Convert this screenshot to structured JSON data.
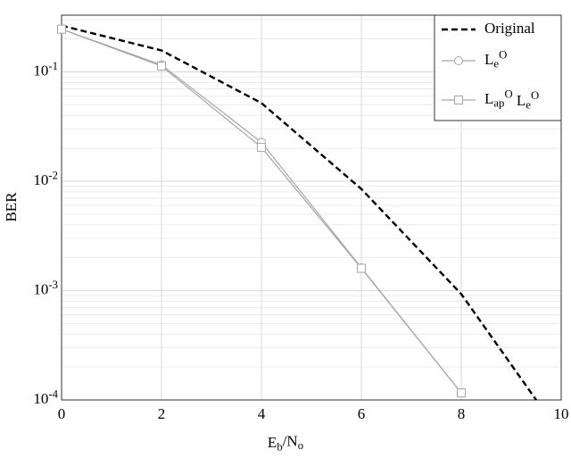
{
  "chart_data": {
    "type": "line",
    "xlabel": "E_b/N_o",
    "ylabel": "BER",
    "series": [
      {
        "name": "Original",
        "color": "#000000",
        "dash": true,
        "marker": "none",
        "x": [
          0,
          2,
          4,
          6,
          8,
          9.5
        ],
        "values": [
          0.265,
          0.157,
          0.0519,
          0.0085,
          0.00093,
          0.0001
        ]
      },
      {
        "name": "L_e^O",
        "color": "#a6a6a6",
        "dash": false,
        "marker": "circle",
        "x": [
          0,
          2,
          4,
          6,
          8
        ],
        "values": [
          0.246,
          0.116,
          0.0227,
          0.00162,
          0.000116
        ]
      },
      {
        "name": "L_ap^O L_e^O",
        "color": "#a6a6a6",
        "dash": false,
        "marker": "square",
        "x": [
          0,
          2,
          4,
          6,
          8
        ],
        "values": [
          0.246,
          0.113,
          0.0204,
          0.0016,
          0.000116
        ]
      }
    ],
    "xlim": [
      0,
      10
    ],
    "xticks": [
      0,
      2,
      4,
      6,
      8,
      10
    ],
    "ylim": [
      0.0001,
      0.33
    ],
    "ylog": true,
    "yticks": [
      {
        "value": 0.0001,
        "label": "10^-4"
      },
      {
        "value": 0.001,
        "label": "10^-3"
      },
      {
        "value": 0.01,
        "label": "10^-2"
      },
      {
        "value": 0.1,
        "label": "10^-1"
      }
    ],
    "grid": true,
    "minor_grid": true,
    "legend": "upper right"
  }
}
